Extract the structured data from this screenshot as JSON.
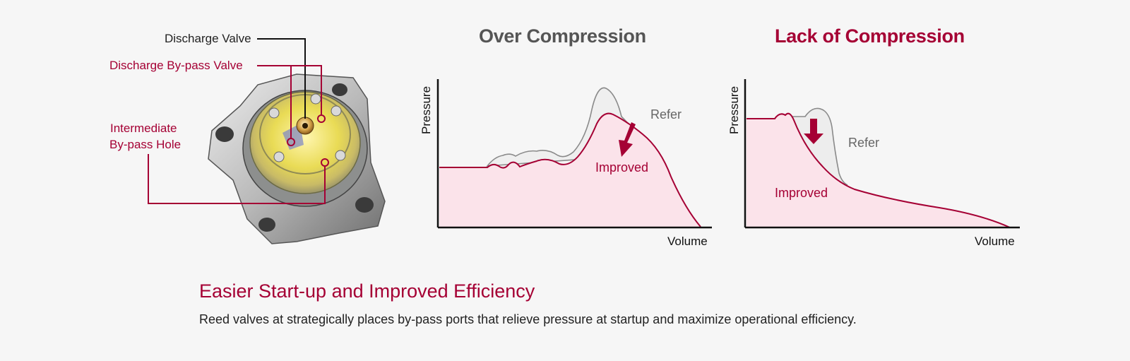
{
  "component_labels": {
    "discharge_valve": "Discharge Valve",
    "discharge_bypass_valve": "Discharge By-pass Valve",
    "intermediate_bypass_hole_line1": "Intermediate",
    "intermediate_bypass_hole_line2": "By-pass Hole"
  },
  "charts": {
    "over": {
      "title": "Over Compression",
      "y_axis": "Pressure",
      "x_axis": "Volume",
      "refer_label": "Refer",
      "improved_label": "Improved"
    },
    "lack": {
      "title": "Lack of Compression",
      "y_axis": "Pressure",
      "x_axis": "Volume",
      "refer_label": "Refer",
      "improved_label": "Improved"
    }
  },
  "footer": {
    "headline": "Easier Start-up and Improved Efficiency",
    "description": "Reed valves at strategically places by-pass ports that relieve pressure at startup and maximize operational efficiency."
  },
  "colors": {
    "brand_red": "#a50034",
    "fill_pink": "#fbe3ea",
    "refer_gray": "#8a8a8a",
    "title_gray": "#555555"
  }
}
